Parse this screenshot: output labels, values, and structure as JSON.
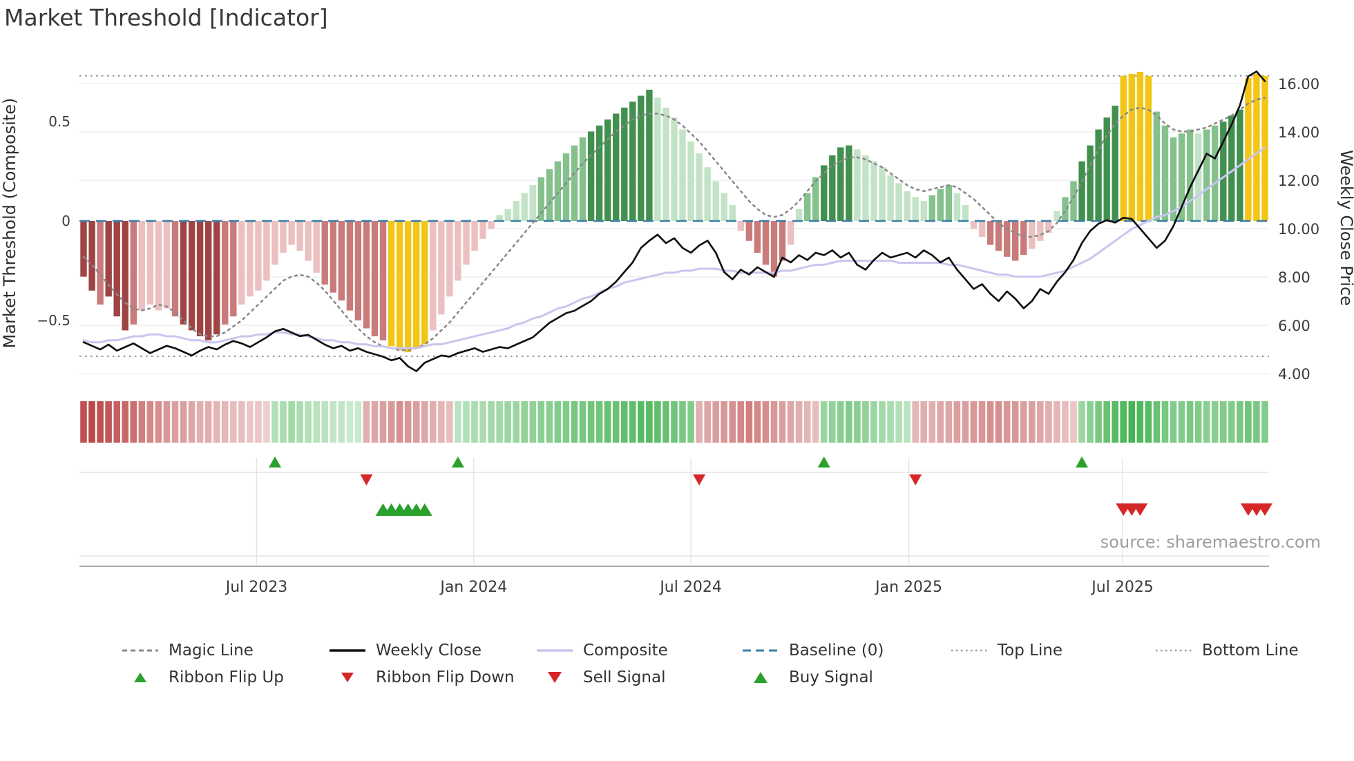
{
  "title": "Market Threshold [Indicator]",
  "source": "source: sharemaestro.com",
  "axes": {
    "left_label": "Market Threshold (Composite)",
    "right_label": "Weekly Close Price",
    "left_ticks": [
      {
        "value": 0.5,
        "label": "0.5"
      },
      {
        "value": 0,
        "label": "0"
      },
      {
        "value": -0.5,
        "label": "−0.5"
      }
    ],
    "right_ticks": [
      {
        "value": 16,
        "label": "16.00"
      },
      {
        "value": 14,
        "label": "14.00"
      },
      {
        "value": 12,
        "label": "12.00"
      },
      {
        "value": 10,
        "label": "10.00"
      },
      {
        "value": 8,
        "label": "8.00"
      },
      {
        "value": 6,
        "label": "6.00"
      },
      {
        "value": 4,
        "label": "4.00"
      }
    ],
    "x_ticks": [
      {
        "week": 20.8,
        "label": "Jul 2023"
      },
      {
        "week": 46.9,
        "label": "Jan 2024"
      },
      {
        "week": 73.0,
        "label": "Jul 2024"
      },
      {
        "week": 99.2,
        "label": "Jan 2025"
      },
      {
        "week": 124.9,
        "label": "Jul 2025"
      }
    ]
  },
  "legend": {
    "row1": [
      {
        "id": "magic-line",
        "label": "Magic Line",
        "color": "#8a8a8a"
      },
      {
        "id": "weekly-close",
        "label": "Weekly Close",
        "color": "#111111"
      },
      {
        "id": "composite",
        "label": "Composite",
        "color": "#c9c5ee"
      },
      {
        "id": "baseline",
        "label": "Baseline (0)",
        "color": "#3a7fa8"
      },
      {
        "id": "top-line",
        "label": "Top Line",
        "color": "#9a9a9a"
      },
      {
        "id": "bottom-line",
        "label": "Bottom Line",
        "color": "#9a9a9a"
      }
    ],
    "row2": [
      {
        "id": "ribbon-flip-up",
        "label": "Ribbon Flip Up",
        "color": "#2ca02c",
        "marker": "up"
      },
      {
        "id": "ribbon-flip-down",
        "label": "Ribbon Flip Down",
        "color": "#d62728",
        "marker": "down"
      },
      {
        "id": "sell-signal",
        "label": "Sell Signal",
        "color": "#d62728",
        "marker": "down"
      },
      {
        "id": "buy-signal",
        "label": "Buy Signal",
        "color": "#2ca02c",
        "marker": "up"
      }
    ]
  },
  "chart_data": {
    "type": "bar+line",
    "title": "Market Threshold [Indicator]",
    "x_tick_labels": [
      "Jul 2023",
      "Jan 2024",
      "Jul 2024",
      "Jan 2025",
      "Jul 2025"
    ],
    "left_axis_label": "Market Threshold (Composite)",
    "right_axis_label": "Weekly Close Price",
    "left_axis_range": [
      -0.86,
      0.84
    ],
    "right_axis_range": [
      3.3,
      16.9
    ],
    "top_line": 0.73,
    "bottom_line": -0.68,
    "baseline": 0,
    "weeks": 143,
    "composite_bars": [
      -0.28,
      -0.35,
      -0.42,
      -0.38,
      -0.48,
      -0.55,
      -0.52,
      -0.45,
      -0.42,
      -0.45,
      -0.44,
      -0.48,
      -0.52,
      -0.55,
      -0.58,
      -0.6,
      -0.57,
      -0.52,
      -0.48,
      -0.42,
      -0.38,
      -0.35,
      -0.3,
      -0.22,
      -0.16,
      -0.12,
      -0.15,
      -0.2,
      -0.26,
      -0.32,
      -0.36,
      -0.4,
      -0.45,
      -0.5,
      -0.54,
      -0.58,
      -0.6,
      -0.63,
      -0.65,
      -0.66,
      -0.64,
      -0.62,
      -0.55,
      -0.47,
      -0.38,
      -0.3,
      -0.22,
      -0.15,
      -0.09,
      -0.04,
      0.03,
      0.06,
      0.1,
      0.14,
      0.18,
      0.22,
      0.26,
      0.3,
      0.34,
      0.38,
      0.42,
      0.45,
      0.48,
      0.51,
      0.54,
      0.57,
      0.6,
      0.63,
      0.66,
      0.62,
      0.57,
      0.52,
      0.46,
      0.4,
      0.34,
      0.27,
      0.2,
      0.14,
      0.08,
      -0.05,
      -0.1,
      -0.16,
      -0.22,
      -0.28,
      -0.2,
      -0.12,
      0.06,
      0.14,
      0.22,
      0.28,
      0.33,
      0.37,
      0.38,
      0.36,
      0.33,
      0.3,
      0.27,
      0.23,
      0.19,
      0.15,
      0.12,
      0.1,
      0.13,
      0.16,
      0.18,
      0.14,
      0.08,
      -0.04,
      -0.08,
      -0.12,
      -0.15,
      -0.18,
      -0.2,
      -0.17,
      -0.14,
      -0.1,
      -0.06,
      0.05,
      0.12,
      0.2,
      0.3,
      0.38,
      0.46,
      0.52,
      0.58,
      0.73,
      0.74,
      0.75,
      0.73,
      0.55,
      0.48,
      0.42,
      0.44,
      0.46,
      0.44,
      0.46,
      0.48,
      0.5,
      0.53,
      0.56,
      0.72,
      0.74,
      0.73
    ],
    "bar_colors": [
      "dr",
      "dr",
      "mr",
      "dr",
      "dr",
      "dr",
      "mr",
      "lr",
      "lr",
      "lr",
      "lr",
      "mr",
      "dr",
      "dr",
      "dr",
      "dr",
      "dr",
      "mr",
      "mr",
      "lr",
      "lr",
      "lr",
      "lr",
      "lr",
      "lr",
      "lr",
      "lr",
      "lr",
      "lr",
      "mr",
      "mr",
      "mr",
      "mr",
      "mr",
      "mr",
      "mr",
      "mr",
      "y",
      "y",
      "y",
      "y",
      "y",
      "lr",
      "lr",
      "lr",
      "lr",
      "lr",
      "lr",
      "lr",
      "lr",
      "lg",
      "lg",
      "lg",
      "lg",
      "lg",
      "mg",
      "mg",
      "mg",
      "mg",
      "mg",
      "mg",
      "dg",
      "dg",
      "dg",
      "dg",
      "dg",
      "dg",
      "dg",
      "dg",
      "lg",
      "lg",
      "lg",
      "lg",
      "lg",
      "lg",
      "lg",
      "lg",
      "lg",
      "lg",
      "lr",
      "mr",
      "mr",
      "mr",
      "mr",
      "mr",
      "lr",
      "lg",
      "mg",
      "mg",
      "dg",
      "dg",
      "dg",
      "dg",
      "lg",
      "lg",
      "lg",
      "lg",
      "lg",
      "lg",
      "lg",
      "lg",
      "lg",
      "mg",
      "mg",
      "mg",
      "lg",
      "lg",
      "lr",
      "lr",
      "mr",
      "mr",
      "mr",
      "mr",
      "mr",
      "lr",
      "lr",
      "lr",
      "lg",
      "mg",
      "mg",
      "dg",
      "dg",
      "dg",
      "dg",
      "dg",
      "y",
      "y",
      "y",
      "y",
      "mg",
      "mg",
      "mg",
      "mg",
      "mg",
      "lg",
      "mg",
      "mg",
      "dg",
      "dg",
      "dg",
      "y",
      "y",
      "y"
    ],
    "weekly_close": [
      5.3,
      5.15,
      5.0,
      5.2,
      4.95,
      5.1,
      5.25,
      5.05,
      4.85,
      5.0,
      5.15,
      5.05,
      4.9,
      4.75,
      4.95,
      5.1,
      5.0,
      5.2,
      5.35,
      5.25,
      5.1,
      5.3,
      5.5,
      5.75,
      5.85,
      5.7,
      5.55,
      5.6,
      5.4,
      5.2,
      5.05,
      5.15,
      4.95,
      5.05,
      4.9,
      4.8,
      4.7,
      4.55,
      4.65,
      4.3,
      4.1,
      4.45,
      4.6,
      4.75,
      4.7,
      4.85,
      4.95,
      5.05,
      4.9,
      5.0,
      5.1,
      5.05,
      5.2,
      5.35,
      5.5,
      5.8,
      6.1,
      6.3,
      6.5,
      6.6,
      6.8,
      7.0,
      7.3,
      7.5,
      7.8,
      8.2,
      8.6,
      9.2,
      9.5,
      9.75,
      9.4,
      9.6,
      9.2,
      9.0,
      9.3,
      9.5,
      9.0,
      8.2,
      7.9,
      8.3,
      8.1,
      8.4,
      8.2,
      8.0,
      8.8,
      8.6,
      8.9,
      8.7,
      9.0,
      8.9,
      9.1,
      8.8,
      9.0,
      8.5,
      8.3,
      8.7,
      9.0,
      8.8,
      8.9,
      9.0,
      8.8,
      9.1,
      8.9,
      8.6,
      8.8,
      8.3,
      7.9,
      7.5,
      7.7,
      7.3,
      7.0,
      7.4,
      7.1,
      6.7,
      7.0,
      7.5,
      7.3,
      7.8,
      8.2,
      8.7,
      9.4,
      9.9,
      10.2,
      10.35,
      10.25,
      10.45,
      10.4,
      10.0,
      9.6,
      9.2,
      9.5,
      10.1,
      10.9,
      11.7,
      12.4,
      13.1,
      12.9,
      13.6,
      14.3,
      15.1,
      16.3,
      16.5,
      16.1
    ],
    "magic_line": [
      -0.18,
      -0.22,
      -0.27,
      -0.32,
      -0.37,
      -0.41,
      -0.44,
      -0.45,
      -0.44,
      -0.42,
      -0.43,
      -0.46,
      -0.5,
      -0.54,
      -0.57,
      -0.58,
      -0.58,
      -0.56,
      -0.53,
      -0.5,
      -0.46,
      -0.42,
      -0.38,
      -0.34,
      -0.3,
      -0.28,
      -0.27,
      -0.28,
      -0.31,
      -0.35,
      -0.4,
      -0.45,
      -0.5,
      -0.54,
      -0.58,
      -0.61,
      -0.63,
      -0.64,
      -0.65,
      -0.65,
      -0.64,
      -0.62,
      -0.59,
      -0.55,
      -0.51,
      -0.46,
      -0.41,
      -0.36,
      -0.31,
      -0.26,
      -0.21,
      -0.16,
      -0.11,
      -0.06,
      -0.01,
      0.04,
      0.09,
      0.14,
      0.19,
      0.24,
      0.29,
      0.33,
      0.37,
      0.41,
      0.45,
      0.48,
      0.51,
      0.53,
      0.54,
      0.54,
      0.53,
      0.51,
      0.48,
      0.44,
      0.4,
      0.35,
      0.3,
      0.25,
      0.2,
      0.15,
      0.1,
      0.06,
      0.03,
      0.02,
      0.03,
      0.06,
      0.1,
      0.15,
      0.2,
      0.24,
      0.28,
      0.3,
      0.32,
      0.32,
      0.31,
      0.29,
      0.27,
      0.24,
      0.21,
      0.18,
      0.16,
      0.15,
      0.16,
      0.17,
      0.18,
      0.17,
      0.14,
      0.11,
      0.07,
      0.03,
      -0.01,
      -0.04,
      -0.06,
      -0.08,
      -0.08,
      -0.07,
      -0.05,
      -0.01,
      0.05,
      0.12,
      0.2,
      0.28,
      0.36,
      0.43,
      0.49,
      0.53,
      0.56,
      0.57,
      0.56,
      0.53,
      0.49,
      0.46,
      0.45,
      0.45,
      0.46,
      0.47,
      0.49,
      0.51,
      0.53,
      0.56,
      0.59,
      0.61,
      0.62
    ],
    "composite_line": [
      -0.6,
      -0.61,
      -0.61,
      -0.6,
      -0.6,
      -0.59,
      -0.58,
      -0.58,
      -0.57,
      -0.57,
      -0.58,
      -0.58,
      -0.59,
      -0.6,
      -0.6,
      -0.61,
      -0.61,
      -0.6,
      -0.59,
      -0.58,
      -0.58,
      -0.57,
      -0.57,
      -0.56,
      -0.56,
      -0.57,
      -0.57,
      -0.58,
      -0.59,
      -0.6,
      -0.6,
      -0.61,
      -0.61,
      -0.62,
      -0.62,
      -0.63,
      -0.63,
      -0.64,
      -0.64,
      -0.64,
      -0.64,
      -0.63,
      -0.62,
      -0.62,
      -0.61,
      -0.6,
      -0.59,
      -0.58,
      -0.57,
      -0.56,
      -0.55,
      -0.54,
      -0.52,
      -0.51,
      -0.49,
      -0.48,
      -0.46,
      -0.44,
      -0.43,
      -0.41,
      -0.39,
      -0.38,
      -0.36,
      -0.34,
      -0.33,
      -0.31,
      -0.3,
      -0.29,
      -0.28,
      -0.27,
      -0.26,
      -0.26,
      -0.25,
      -0.25,
      -0.24,
      -0.24,
      -0.24,
      -0.25,
      -0.25,
      -0.26,
      -0.26,
      -0.26,
      -0.26,
      -0.26,
      -0.25,
      -0.25,
      -0.24,
      -0.23,
      -0.22,
      -0.22,
      -0.21,
      -0.2,
      -0.2,
      -0.2,
      -0.2,
      -0.2,
      -0.2,
      -0.2,
      -0.21,
      -0.21,
      -0.21,
      -0.21,
      -0.21,
      -0.21,
      -0.22,
      -0.22,
      -0.23,
      -0.24,
      -0.25,
      -0.26,
      -0.27,
      -0.27,
      -0.28,
      -0.28,
      -0.28,
      -0.28,
      -0.27,
      -0.26,
      -0.25,
      -0.23,
      -0.21,
      -0.19,
      -0.16,
      -0.13,
      -0.1,
      -0.07,
      -0.04,
      -0.02,
      0.0,
      0.02,
      0.03,
      0.05,
      0.07,
      0.1,
      0.13,
      0.16,
      0.19,
      0.22,
      0.25,
      0.28,
      0.31,
      0.34,
      0.37
    ],
    "ribbon": [
      -0.9,
      -0.95,
      -0.9,
      -0.85,
      -0.8,
      -0.75,
      -0.7,
      -0.6,
      -0.55,
      -0.5,
      -0.45,
      -0.4,
      -0.4,
      -0.35,
      -0.3,
      -0.3,
      -0.25,
      -0.25,
      -0.2,
      -0.2,
      -0.15,
      -0.15,
      -0.1,
      0.25,
      0.3,
      0.35,
      0.3,
      0.25,
      0.2,
      0.2,
      0.15,
      0.15,
      0.1,
      0.1,
      -0.3,
      -0.35,
      -0.4,
      -0.45,
      -0.5,
      -0.45,
      -0.4,
      -0.35,
      -0.3,
      -0.25,
      -0.2,
      0.2,
      0.25,
      0.3,
      0.3,
      0.35,
      0.35,
      0.4,
      0.4,
      0.45,
      0.45,
      0.5,
      0.5,
      0.55,
      0.55,
      0.6,
      0.6,
      0.65,
      0.65,
      0.7,
      0.7,
      0.75,
      0.75,
      0.8,
      0.8,
      0.75,
      0.7,
      0.65,
      0.6,
      0.55,
      -0.3,
      -0.35,
      -0.4,
      -0.45,
      -0.5,
      -0.55,
      -0.6,
      -0.55,
      -0.5,
      -0.45,
      -0.4,
      -0.35,
      -0.3,
      -0.25,
      -0.2,
      0.4,
      0.45,
      0.5,
      0.55,
      0.5,
      0.45,
      0.4,
      0.35,
      0.3,
      0.25,
      0.2,
      -0.25,
      -0.3,
      -0.3,
      -0.35,
      -0.35,
      -0.4,
      -0.4,
      -0.45,
      -0.45,
      -0.5,
      -0.5,
      -0.45,
      -0.45,
      -0.4,
      -0.4,
      -0.35,
      -0.3,
      -0.25,
      -0.2,
      -0.15,
      0.4,
      0.5,
      0.6,
      0.7,
      0.8,
      0.85,
      0.9,
      0.85,
      0.8,
      0.7,
      0.6,
      0.55,
      0.55,
      0.6,
      0.55,
      0.5,
      0.5,
      0.55,
      0.55,
      0.6,
      0.65,
      0.6,
      0.55
    ],
    "signals": {
      "ribbon_flip_up_weeks": [
        23,
        45,
        89,
        120
      ],
      "ribbon_flip_down_weeks": [
        34,
        74,
        100
      ],
      "buy_signal_weeks": [
        36,
        37,
        38,
        39,
        40,
        41
      ],
      "sell_signal_weeks": [
        125,
        126,
        127,
        140,
        141,
        142
      ]
    },
    "palette": {
      "dr": "#9e4444",
      "mr": "#c97b7b",
      "lr": "#ecc0c0",
      "dg": "#41904f",
      "mg": "#84c18d",
      "lg": "#c3e3c6",
      "y": "#f3c515"
    },
    "colors": {
      "magic_line": "#8a8a8a",
      "weekly_close": "#111111",
      "composite_line": "#c9c5ee",
      "baseline": "#3a7fa8",
      "top_bottom_line": "#8f8f8f",
      "buy": "#2ca02c",
      "sell": "#d62728",
      "gridline": "#ededed",
      "separator": "#e3e3e3",
      "axis_spine": "#9c9c9c"
    }
  }
}
